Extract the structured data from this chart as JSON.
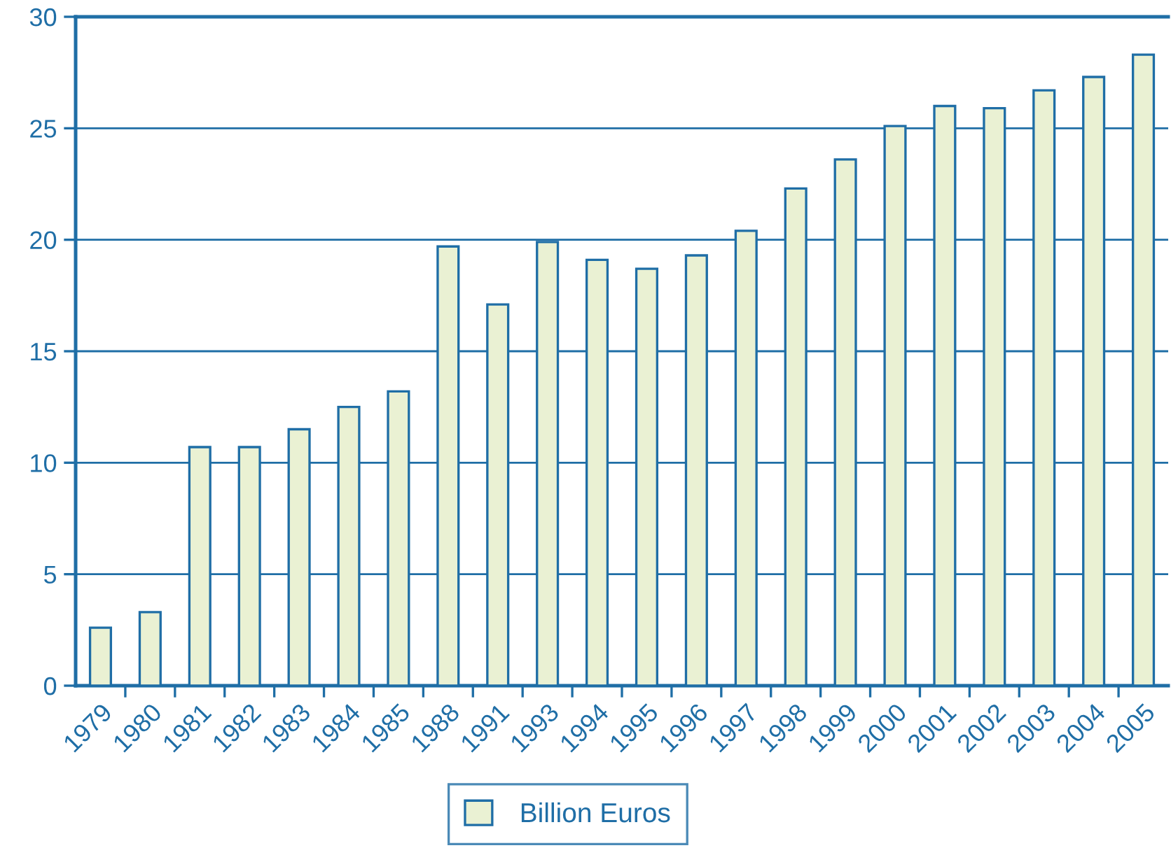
{
  "chart_data": {
    "type": "bar",
    "categories": [
      "1979",
      "1980",
      "1981",
      "1982",
      "1983",
      "1984",
      "1985",
      "1988",
      "1991",
      "1993",
      "1994",
      "1995",
      "1996",
      "1997",
      "1998",
      "1999",
      "2000",
      "2001",
      "2002",
      "2003",
      "2004",
      "2005"
    ],
    "series": [
      {
        "name": "Billion Euros",
        "color": "#eaf1d3",
        "values": [
          2.6,
          3.3,
          10.7,
          10.7,
          11.5,
          12.5,
          13.2,
          19.7,
          17.1,
          19.9,
          19.1,
          18.7,
          19.3,
          20.4,
          22.3,
          23.6,
          25.1,
          26.0,
          25.9,
          26.7,
          27.3,
          28.3
        ]
      }
    ],
    "ylim": [
      0,
      30
    ],
    "yticks": [
      0,
      5,
      10,
      15,
      20,
      25,
      30
    ],
    "grid": "y",
    "legend": "bottom"
  }
}
